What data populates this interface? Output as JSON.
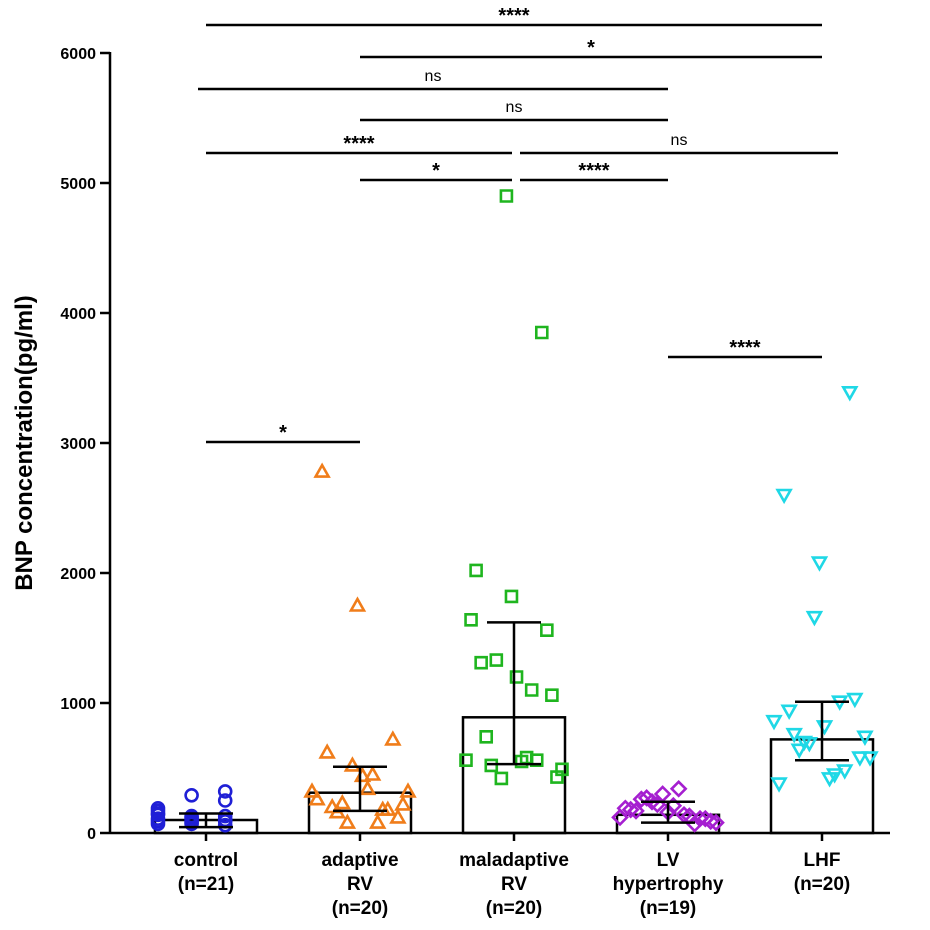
{
  "chart_data": {
    "type": "bar",
    "ylabel": "BNP concentration(pg/ml)",
    "xlabel": "",
    "ylim": [
      0,
      6000
    ],
    "yticks": [
      0,
      1000,
      2000,
      3000,
      4000,
      5000,
      6000
    ],
    "groups": [
      {
        "name": "control",
        "label_lines": [
          "control",
          "(n=21)"
        ],
        "color": "#1f1fd6",
        "marker": "circle",
        "bar": 100,
        "err_low": 45,
        "err_high": 150,
        "points": [
          190,
          90,
          130,
          110,
          80,
          250,
          150,
          120,
          100,
          70,
          290,
          320,
          140,
          110,
          90,
          170,
          130,
          100,
          90,
          70,
          60
        ]
      },
      {
        "name": "adaptive RV",
        "label_lines": [
          "adaptive",
          "RV",
          "(n=20)"
        ],
        "color": "#f07d1a",
        "marker": "triangle-up",
        "bar": 310,
        "err_low": 170,
        "err_high": 510,
        "points": [
          320,
          80,
          180,
          260,
          520,
          180,
          2780,
          1750,
          720,
          620,
          440,
          120,
          200,
          340,
          220,
          160,
          450,
          320,
          230,
          80
        ]
      },
      {
        "name": "maladaptive RV",
        "label_lines": [
          "maladaptive",
          "RV",
          "(n=20)"
        ],
        "color": "#1fb51f",
        "marker": "square",
        "bar": 890,
        "err_low": 530,
        "err_high": 1620,
        "points": [
          560,
          420,
          560,
          1640,
          4900,
          3850,
          2020,
          1820,
          1560,
          1310,
          1200,
          1060,
          740,
          550,
          430,
          520,
          580,
          490,
          1330,
          1100
        ]
      },
      {
        "name": "LV hypertrophy",
        "label_lines": [
          "LV",
          "hypertrophy",
          "(n=19)"
        ],
        "color": "#a51fd0",
        "marker": "diamond",
        "bar": 140,
        "err_low": 80,
        "err_high": 240,
        "points": [
          120,
          220,
          70,
          180,
          160,
          110,
          260,
          340,
          80,
          240,
          130,
          190,
          300,
          110,
          170,
          210,
          90,
          270,
          140
        ]
      },
      {
        "name": "LHF",
        "label_lines": [
          "LHF",
          "(n=20)"
        ],
        "color": "#1fd8e6",
        "marker": "triangle-down",
        "bar": 720,
        "err_low": 560,
        "err_high": 1010,
        "points": [
          860,
          690,
          480,
          380,
          1660,
          3390,
          2600,
          2080,
          1030,
          940,
          820,
          580,
          760,
          420,
          740,
          640,
          450,
          580,
          700,
          1010
        ]
      }
    ],
    "comparisons": [
      {
        "from": 0,
        "to": 4,
        "label": "****"
      },
      {
        "from": 1,
        "to": 4,
        "label": "*"
      },
      {
        "from": 0,
        "to": 3,
        "label": "ns"
      },
      {
        "from": 1,
        "to": 3,
        "label": "ns"
      },
      {
        "from": 0,
        "to": 2,
        "label": "****"
      },
      {
        "from": 2,
        "to": 4,
        "label": "ns"
      },
      {
        "from": 1,
        "to": 2,
        "label": "*"
      },
      {
        "from": 2,
        "to": 3,
        "label": "****"
      },
      {
        "from": 3,
        "to": 4,
        "label": "****"
      },
      {
        "from": 0,
        "to": 1,
        "label": "*"
      }
    ]
  }
}
